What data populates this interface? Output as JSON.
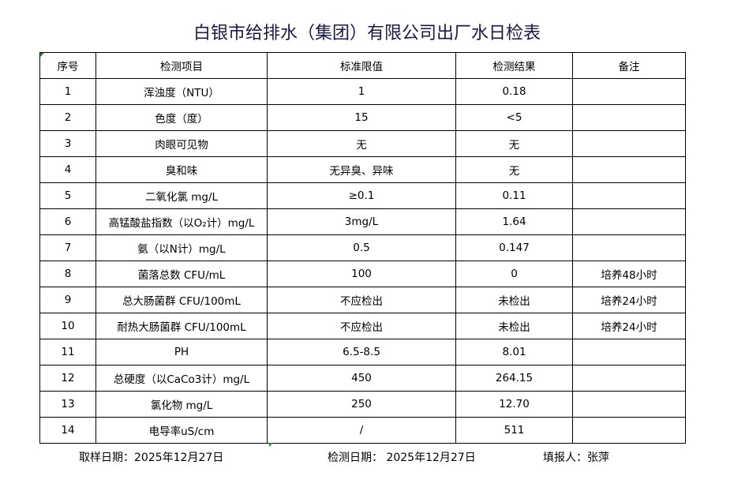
{
  "title": "白银市给排水（集团）有限公司出厂水日检表",
  "headers": [
    "序号",
    "检测项目",
    "标准限值",
    "检测结果",
    "备注"
  ],
  "rows": [
    [
      "1",
      "浑浊度（NTU）",
      "1",
      "0.18",
      ""
    ],
    [
      "2",
      "色度（度）",
      "15",
      "<5",
      ""
    ],
    [
      "3",
      "肉眼可见物",
      "无",
      "无",
      ""
    ],
    [
      "4",
      "臭和味",
      "无异臭、异味",
      "无",
      ""
    ],
    [
      "5",
      "二氧化氯 mg/L",
      "≥0.1",
      "0.11",
      ""
    ],
    [
      "6",
      "高锰酸盐指数（以O₂计）mg/L",
      "3mg/L",
      "1.64",
      ""
    ],
    [
      "7",
      "氨（以N计）mg/L",
      "0.5",
      "0.147",
      ""
    ],
    [
      "8",
      "菌落总数 CFU/mL",
      "100",
      "0",
      "培养48小时"
    ],
    [
      "9",
      "总大肠菌群 CFU/100mL",
      "不应检出",
      "未检出",
      "培养24小时"
    ],
    [
      "10",
      "耐热大肠菌群 CFU/100mL",
      "不应检出",
      "未检出",
      "培养24小时"
    ],
    [
      "11",
      "PH",
      "6.5-8.5",
      "8.01",
      ""
    ],
    [
      "12",
      "总硬度（以CaCo3计）mg/L",
      "450",
      "264.15",
      ""
    ],
    [
      "13",
      "氯化物 mg/L",
      "250",
      "12.70",
      ""
    ],
    [
      "14",
      "电导率uS/cm",
      "/",
      "511",
      ""
    ]
  ],
  "footer": {
    "sampling_date": "取样日期：2025年12月27日",
    "test_date": "检测日期： 2025年12月27日",
    "reporter": "填报人：张萍"
  }
}
